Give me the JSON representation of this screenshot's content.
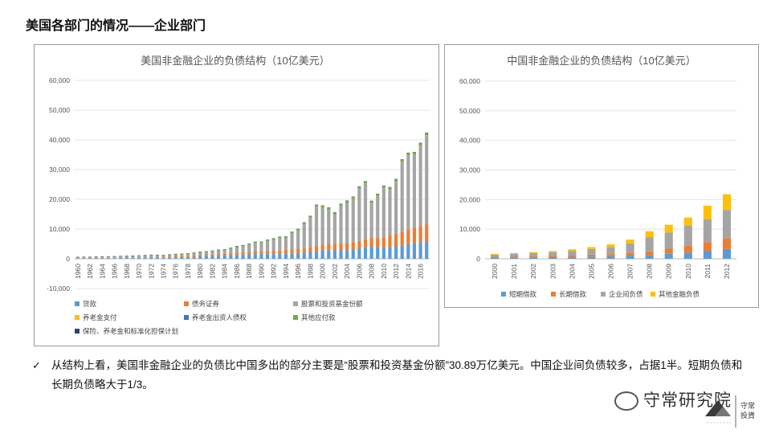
{
  "page_title": "美国各部门的情况——企业部门",
  "footnote": {
    "bullet": "✓",
    "text": "从结构上看，美国非金融企业的负债比中国多出的部分主要是“股票和投资基金份额”30.89万亿美元。中国企业间负债较多，占据1半。短期负债和长期负债略大于1/3。"
  },
  "watermark": {
    "text": "守常研究院"
  },
  "logo": {
    "brand_lines": [
      "守常",
      "投資"
    ]
  },
  "chart_data": [
    {
      "type": "bar",
      "stacked": true,
      "title": "美国非金融企业的负债结构（10亿美元）",
      "categories": [
        "1960",
        "1961",
        "1962",
        "1963",
        "1964",
        "1965",
        "1966",
        "1967",
        "1968",
        "1969",
        "1970",
        "1971",
        "1972",
        "1973",
        "1974",
        "1975",
        "1976",
        "1977",
        "1978",
        "1979",
        "1980",
        "1981",
        "1982",
        "1983",
        "1984",
        "1985",
        "1986",
        "1987",
        "1988",
        "1989",
        "1990",
        "1991",
        "1992",
        "1993",
        "1994",
        "1995",
        "1996",
        "1997",
        "1998",
        "1999",
        "2000",
        "2001",
        "2002",
        "2003",
        "2004",
        "2005",
        "2006",
        "2007",
        "2008",
        "2009",
        "2010",
        "2011",
        "2012",
        "2013",
        "2014",
        "2015",
        "2016",
        "2017"
      ],
      "tick_labels": [
        "1960",
        "1962",
        "1964",
        "1966",
        "1968",
        "1970",
        "1972",
        "1974",
        "1976",
        "1978",
        "1980",
        "1982",
        "1984",
        "1986",
        "1988",
        "1990",
        "1992",
        "1994",
        "1996",
        "1998",
        "2000",
        "2002",
        "2004",
        "2006",
        "2008",
        "2010",
        "2012",
        "2014",
        "2016"
      ],
      "ylim": [
        -10000,
        60000
      ],
      "yticks": [
        -10000,
        0,
        10000,
        20000,
        30000,
        40000,
        50000,
        60000
      ],
      "ytick_labels": [
        "-10,000",
        "0",
        "10,000",
        "20,000",
        "30,000",
        "40,000",
        "50,000",
        "60,000"
      ],
      "series": [
        {
          "name": "贷款",
          "color": "#5b9bd5",
          "values": [
            150,
            160,
            170,
            180,
            190,
            210,
            230,
            250,
            270,
            300,
            320,
            340,
            380,
            420,
            470,
            480,
            500,
            560,
            640,
            720,
            800,
            900,
            950,
            1000,
            1100,
            1200,
            1300,
            1400,
            1500,
            1600,
            1650,
            1600,
            1580,
            1600,
            1700,
            1850,
            1950,
            2100,
            2300,
            2500,
            2800,
            2900,
            2850,
            2850,
            2950,
            3200,
            3500,
            4000,
            4200,
            3800,
            3700,
            3900,
            4200,
            4500,
            4900,
            5300,
            5600,
            5900
          ]
        },
        {
          "name": "债务证券",
          "color": "#ed7d31",
          "values": [
            80,
            85,
            90,
            95,
            100,
            110,
            120,
            140,
            150,
            160,
            180,
            200,
            220,
            230,
            250,
            280,
            310,
            340,
            360,
            380,
            410,
            430,
            470,
            500,
            550,
            650,
            750,
            850,
            900,
            950,
            1000,
            1050,
            1100,
            1200,
            1250,
            1350,
            1400,
            1500,
            1650,
            1800,
            1900,
            2100,
            2200,
            2300,
            2350,
            2400,
            2500,
            2700,
            2900,
            3200,
            3500,
            3800,
            4200,
            4500,
            4800,
            5100,
            5400,
            5700
          ]
        },
        {
          "name": "股票和投资基金份额",
          "color": "#a5a5a5",
          "values": [
            300,
            350,
            330,
            380,
            420,
            400,
            390,
            450,
            520,
            450,
            470,
            550,
            600,
            470,
            350,
            520,
            610,
            560,
            600,
            700,
            900,
            850,
            1000,
            1200,
            1150,
            1500,
            1800,
            1900,
            2200,
            2700,
            2600,
            3300,
            3700,
            4100,
            4000,
            5300,
            6100,
            8000,
            9800,
            13200,
            12500,
            11500,
            9800,
            12600,
            13500,
            14500,
            17500,
            18500,
            11500,
            14000,
            16500,
            15500,
            17500,
            23500,
            25000,
            24500,
            27000,
            29800
          ]
        },
        {
          "name": "养老金支付",
          "color": "#ffc000",
          "values": [
            10,
            10,
            10,
            10,
            10,
            10,
            10,
            10,
            10,
            10,
            20,
            20,
            20,
            20,
            20,
            20,
            20,
            20,
            20,
            20,
            30,
            30,
            30,
            30,
            30,
            30,
            30,
            40,
            40,
            40,
            40,
            40,
            40,
            40,
            40,
            40,
            50,
            50,
            50,
            50,
            50,
            50,
            50,
            50,
            50,
            50,
            50,
            60,
            60,
            60,
            60,
            60,
            60,
            60,
            60,
            60,
            60,
            60
          ]
        },
        {
          "name": "养老金出资人债权",
          "color": "#4472c4",
          "values": [
            20,
            20,
            20,
            20,
            20,
            20,
            20,
            30,
            30,
            30,
            30,
            30,
            30,
            30,
            30,
            30,
            30,
            40,
            40,
            40,
            40,
            40,
            40,
            40,
            50,
            50,
            50,
            50,
            50,
            50,
            50,
            50,
            60,
            60,
            60,
            60,
            60,
            60,
            60,
            60,
            60,
            60,
            60,
            60,
            60,
            60,
            60,
            70,
            70,
            70,
            70,
            70,
            70,
            70,
            70,
            70,
            70,
            70
          ]
        },
        {
          "name": "其他应付款",
          "color": "#70ad47",
          "values": [
            60,
            60,
            65,
            70,
            75,
            80,
            85,
            90,
            95,
            100,
            110,
            120,
            130,
            140,
            150,
            160,
            170,
            180,
            200,
            210,
            230,
            250,
            260,
            270,
            290,
            310,
            330,
            350,
            370,
            390,
            400,
            410,
            420,
            440,
            460,
            480,
            500,
            530,
            560,
            590,
            620,
            640,
            650,
            660,
            680,
            700,
            720,
            750,
            760,
            740,
            750,
            770,
            790,
            810,
            830,
            850,
            870,
            900
          ]
        },
        {
          "name": "保险、养老金和标准化担保计划",
          "color": "#264478",
          "values": [
            5,
            5,
            5,
            5,
            5,
            5,
            5,
            5,
            5,
            5,
            5,
            5,
            5,
            5,
            5,
            10,
            10,
            10,
            10,
            10,
            10,
            10,
            10,
            10,
            10,
            10,
            10,
            10,
            10,
            10,
            10,
            10,
            10,
            10,
            10,
            10,
            10,
            10,
            10,
            10,
            10,
            10,
            10,
            10,
            10,
            10,
            10,
            10,
            10,
            10,
            10,
            10,
            10,
            10,
            10,
            10,
            10,
            10
          ]
        }
      ]
    },
    {
      "type": "bar",
      "stacked": true,
      "title": "中国非金融企业的负债结构（10亿美元）",
      "categories": [
        "2000",
        "2001",
        "2002",
        "2003",
        "2004",
        "2005",
        "2006",
        "2007",
        "2008",
        "2009",
        "2010",
        "2011",
        "2012"
      ],
      "ylim": [
        0,
        60000
      ],
      "yticks": [
        0,
        10000,
        20000,
        30000,
        40000,
        50000,
        60000
      ],
      "ytick_labels": [
        "0",
        "10,000",
        "20,000",
        "30,000",
        "40,000",
        "50,000",
        "60,000"
      ],
      "series": [
        {
          "name": "短期借款",
          "color": "#5b9bd5",
          "values": [
            400,
            450,
            500,
            550,
            650,
            750,
            850,
            1050,
            1300,
            1700,
            2100,
            2700,
            3300
          ]
        },
        {
          "name": "长期借款",
          "color": "#ed7d31",
          "values": [
            300,
            350,
            400,
            450,
            550,
            650,
            750,
            950,
            1200,
            1700,
            2300,
            2900,
            3600
          ]
        },
        {
          "name": "企业间负债",
          "color": "#a5a5a5",
          "values": [
            700,
            850,
            1000,
            1200,
            1500,
            1900,
            2400,
            3200,
            4800,
            5500,
            6800,
            7800,
            9600
          ]
        },
        {
          "name": "其他金融负债",
          "color": "#ffc000",
          "values": [
            250,
            300,
            350,
            400,
            500,
            650,
            850,
            1300,
            2000,
            2600,
            2700,
            4500,
            5300
          ]
        }
      ]
    }
  ]
}
